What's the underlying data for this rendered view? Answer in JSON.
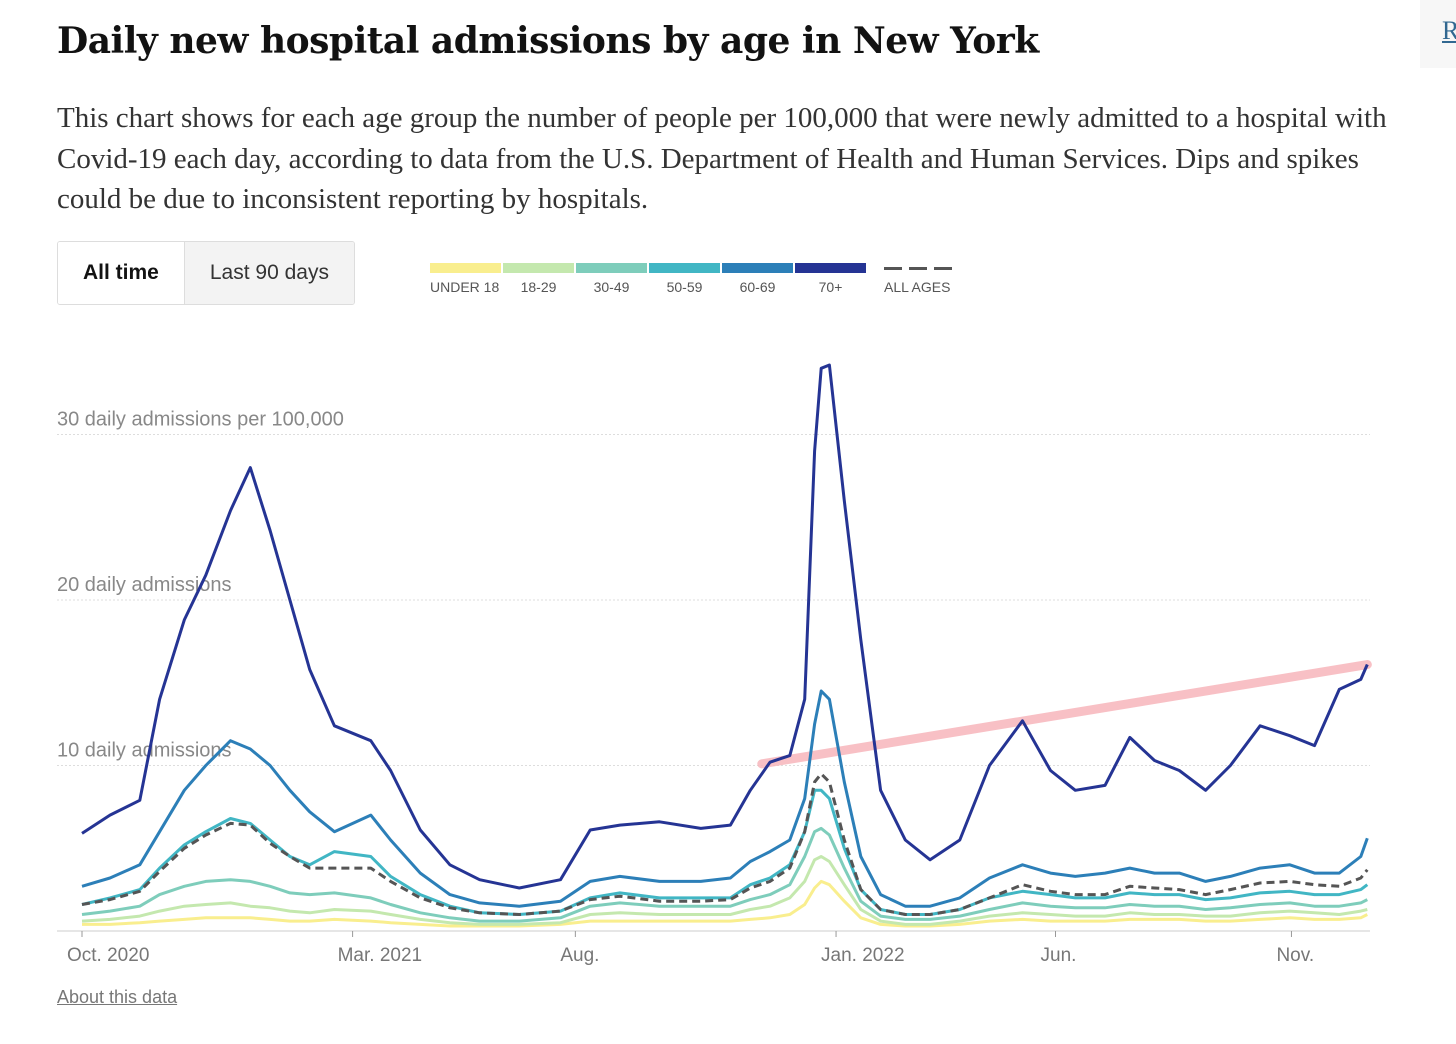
{
  "side_link": "R",
  "title": "Daily new hospital admissions by age in New York",
  "description": "This chart shows for each age group the number of people per 100,000 that were newly admitted to a hospital with Covid-19 each day, according to data from the U.S. Department of Health and Human Services. Dips and spikes could be due to inconsistent reporting by hospitals.",
  "toggle": {
    "all_time": "All time",
    "last_90": "Last 90 days",
    "selected": "All time"
  },
  "about_link": "About this data",
  "chart_data": {
    "type": "line",
    "title": "Daily new hospital admissions by age in New York",
    "xlabel": "",
    "ylabel": "daily admissions per 100,000",
    "x_unit": "days since Oct. 1, 2020",
    "xlim": [
      0,
      779
    ],
    "ylim": [
      0,
      35
    ],
    "yticks": [
      {
        "value": 10,
        "label": "10 daily admissions"
      },
      {
        "value": 20,
        "label": "20 daily admissions"
      },
      {
        "value": 30,
        "label": "30 daily admissions per 100,000"
      }
    ],
    "xticks": [
      {
        "value": 0,
        "label": "Oct. 2020"
      },
      {
        "value": 164,
        "label": "Mar. 2021"
      },
      {
        "value": 299,
        "label": "Aug."
      },
      {
        "value": 457,
        "label": "Jan. 2022"
      },
      {
        "value": 590,
        "label": "Jun."
      },
      {
        "value": 733,
        "label": "Nov."
      }
    ],
    "grid": true,
    "legend": "top",
    "x": [
      0,
      17,
      35,
      47,
      62,
      75,
      90,
      102,
      114,
      126,
      138,
      153,
      175,
      187,
      205,
      223,
      241,
      265,
      290,
      308,
      326,
      350,
      375,
      393,
      405,
      417,
      429,
      438,
      444,
      448,
      453,
      462,
      472,
      484,
      499,
      514,
      532,
      550,
      570,
      587,
      602,
      620,
      635,
      650,
      665,
      681,
      696,
      714,
      732,
      747,
      762,
      775,
      779
    ],
    "series": [
      {
        "name": "UNDER 18",
        "color": "#f9ee8e",
        "dashed": false,
        "values": [
          0.4,
          0.4,
          0.5,
          0.6,
          0.7,
          0.8,
          0.8,
          0.8,
          0.7,
          0.6,
          0.6,
          0.7,
          0.6,
          0.5,
          0.4,
          0.3,
          0.3,
          0.3,
          0.4,
          0.6,
          0.6,
          0.6,
          0.6,
          0.6,
          0.7,
          0.8,
          1,
          1.6,
          2.6,
          3,
          2.8,
          1.8,
          0.8,
          0.4,
          0.3,
          0.3,
          0.4,
          0.6,
          0.7,
          0.6,
          0.6,
          0.6,
          0.7,
          0.7,
          0.7,
          0.6,
          0.6,
          0.7,
          0.8,
          0.7,
          0.7,
          0.8,
          1
        ]
      },
      {
        "name": "18-29",
        "color": "#c4e8ae",
        "dashed": false,
        "values": [
          0.6,
          0.7,
          0.9,
          1.2,
          1.5,
          1.6,
          1.7,
          1.5,
          1.4,
          1.2,
          1.1,
          1.3,
          1.2,
          1,
          0.7,
          0.5,
          0.4,
          0.4,
          0.5,
          1,
          1.1,
          1,
          1,
          1,
          1.3,
          1.5,
          2,
          3,
          4.3,
          4.5,
          4.2,
          2.8,
          1.3,
          0.6,
          0.4,
          0.4,
          0.6,
          0.9,
          1.1,
          1,
          0.9,
          0.9,
          1.1,
          1,
          1,
          0.9,
          0.9,
          1.1,
          1.2,
          1.1,
          1,
          1.2,
          1.3
        ]
      },
      {
        "name": "30-49",
        "color": "#7ecdbb",
        "dashed": false,
        "values": [
          1,
          1.2,
          1.5,
          2.2,
          2.7,
          3,
          3.1,
          3,
          2.7,
          2.3,
          2.2,
          2.3,
          2,
          1.6,
          1.1,
          0.8,
          0.6,
          0.6,
          0.8,
          1.5,
          1.7,
          1.5,
          1.5,
          1.5,
          1.9,
          2.2,
          2.8,
          4.5,
          6,
          6.2,
          5.8,
          3.8,
          1.8,
          0.9,
          0.7,
          0.7,
          0.9,
          1.3,
          1.7,
          1.5,
          1.4,
          1.4,
          1.6,
          1.5,
          1.5,
          1.3,
          1.4,
          1.6,
          1.7,
          1.5,
          1.5,
          1.7,
          1.9
        ]
      },
      {
        "name": "50-59",
        "color": "#41b6c4",
        "dashed": false,
        "values": [
          1.6,
          2,
          2.5,
          3.8,
          5.2,
          6,
          6.8,
          6.5,
          5.5,
          4.5,
          4,
          4.8,
          4.5,
          3.3,
          2.2,
          1.5,
          1.1,
          1,
          1.2,
          2,
          2.3,
          2,
          2,
          2,
          2.8,
          3.2,
          4,
          6,
          8.5,
          8.5,
          8,
          5,
          2.5,
          1.3,
          1,
          1,
          1.3,
          2,
          2.4,
          2.2,
          2,
          2,
          2.3,
          2.2,
          2.2,
          1.9,
          2,
          2.3,
          2.4,
          2.2,
          2.2,
          2.5,
          2.8
        ]
      },
      {
        "name": "60-69",
        "color": "#2c7fb8",
        "dashed": false,
        "values": [
          2.7,
          3.2,
          4,
          6,
          8.5,
          10,
          11.5,
          11,
          10,
          8.5,
          7.2,
          6,
          7,
          5.5,
          3.5,
          2.2,
          1.7,
          1.5,
          1.8,
          3,
          3.3,
          3,
          3,
          3.2,
          4.2,
          4.8,
          5.5,
          8,
          12.5,
          14.5,
          14,
          9,
          4.5,
          2.2,
          1.5,
          1.5,
          2,
          3.2,
          4,
          3.5,
          3.3,
          3.5,
          3.8,
          3.5,
          3.5,
          3,
          3.3,
          3.8,
          4,
          3.5,
          3.5,
          4.5,
          5.6
        ]
      },
      {
        "name": "ALL AGES",
        "color": "#555555",
        "dashed": true,
        "values": [
          1.6,
          1.9,
          2.4,
          3.6,
          5,
          5.8,
          6.5,
          6.4,
          5.3,
          4.5,
          3.8,
          3.8,
          3.8,
          3,
          2,
          1.4,
          1.1,
          1,
          1.2,
          1.9,
          2.1,
          1.8,
          1.8,
          1.9,
          2.6,
          3,
          3.8,
          6,
          9,
          9.5,
          9,
          5.5,
          2.5,
          1.3,
          1,
          1,
          1.3,
          2,
          2.8,
          2.4,
          2.2,
          2.2,
          2.7,
          2.6,
          2.5,
          2.2,
          2.5,
          2.9,
          3,
          2.8,
          2.7,
          3.2,
          3.7
        ]
      },
      {
        "name": "70+",
        "color": "#253494",
        "dashed": false,
        "values": [
          5.9,
          7,
          7.9,
          14,
          18.8,
          21.5,
          25.4,
          28,
          24.2,
          20,
          15.8,
          12.4,
          11.5,
          9.7,
          6.1,
          4,
          3.1,
          2.6,
          3.1,
          6.1,
          6.4,
          6.6,
          6.2,
          6.4,
          8.5,
          10.2,
          10.6,
          14,
          29,
          34,
          34.2,
          26,
          17.6,
          8.5,
          5.5,
          4.3,
          5.5,
          10,
          12.7,
          9.7,
          8.5,
          8.8,
          11.7,
          10.3,
          9.7,
          8.5,
          10,
          12.4,
          11.8,
          11.2,
          14.6,
          15.2,
          16.1
        ]
      }
    ],
    "annotation": {
      "type": "trend-line",
      "color": "#f7b6bb",
      "x": [
        412,
        779
      ],
      "values": [
        10.1,
        16.1
      ]
    }
  }
}
